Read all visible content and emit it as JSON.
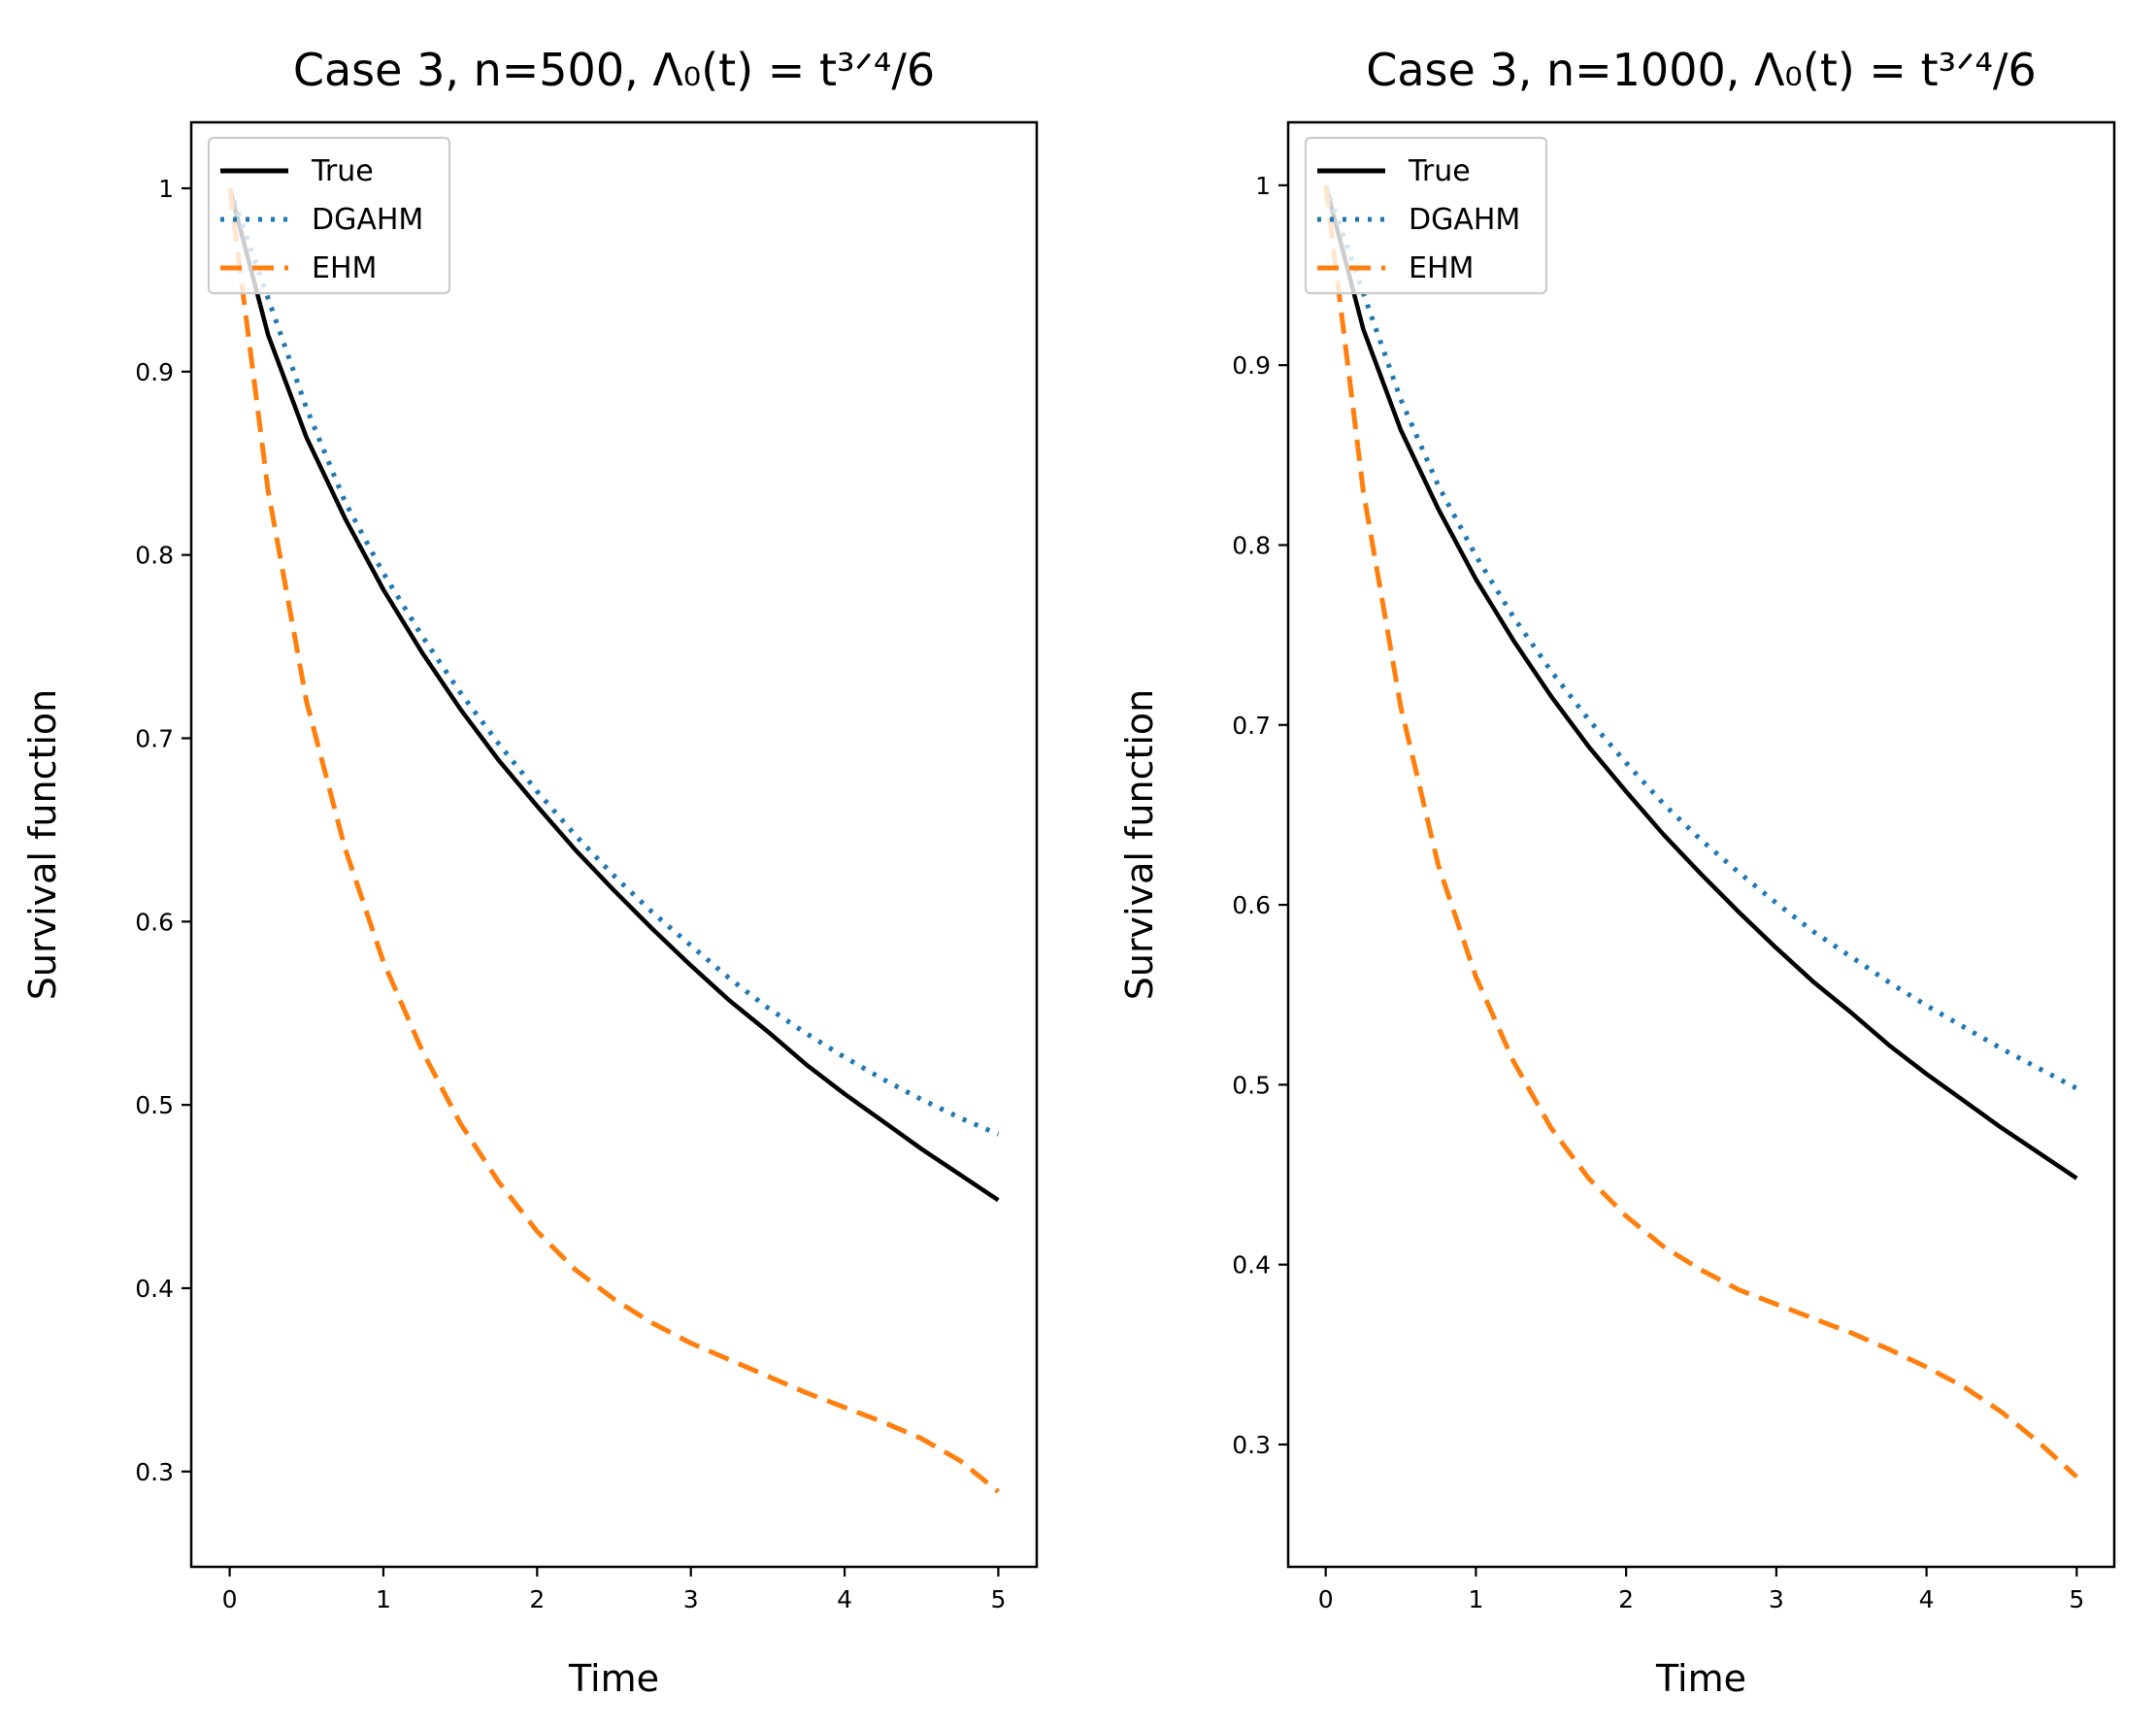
{
  "chart_data": [
    {
      "type": "line",
      "title": "Case 3, n=500, Λ₀(t) = t³ᐟ⁴/6",
      "xlabel": "Time",
      "ylabel": "Survival function",
      "xlim": [
        -0.25,
        5.25
      ],
      "ylim": [
        0.248,
        1.036
      ],
      "xticks": [
        0,
        1,
        2,
        3,
        4,
        5
      ],
      "yticks": [
        0.3,
        0.4,
        0.5,
        0.6,
        0.7,
        0.8,
        0.9,
        1.0
      ],
      "legend": "upper-left",
      "grid": false,
      "x": [
        0,
        0.25,
        0.5,
        0.75,
        1,
        1.25,
        1.5,
        1.75,
        2,
        2.25,
        2.5,
        2.75,
        3,
        3.25,
        3.5,
        3.75,
        4,
        4.25,
        4.5,
        4.75,
        5
      ],
      "series": [
        {
          "name": "True",
          "color": "#000000",
          "dash": "solid",
          "values": [
            1.0,
            0.92,
            0.864,
            0.82,
            0.781,
            0.747,
            0.716,
            0.688,
            0.663,
            0.639,
            0.617,
            0.596,
            0.576,
            0.557,
            0.54,
            0.522,
            0.506,
            0.491,
            0.476,
            0.462,
            0.448
          ]
        },
        {
          "name": "DGAHM",
          "color": "#1f77b4",
          "dash": "dotted",
          "values": [
            1.0,
            0.94,
            0.88,
            0.829,
            0.79,
            0.756,
            0.725,
            0.697,
            0.671,
            0.647,
            0.625,
            0.605,
            0.587,
            0.569,
            0.553,
            0.539,
            0.526,
            0.514,
            0.503,
            0.493,
            0.484
          ]
        },
        {
          "name": "EHM",
          "color": "#ff7f0e",
          "dash": "dashed",
          "values": [
            1.0,
            0.835,
            0.72,
            0.64,
            0.578,
            0.53,
            0.49,
            0.458,
            0.431,
            0.41,
            0.394,
            0.381,
            0.37,
            0.361,
            0.352,
            0.343,
            0.335,
            0.327,
            0.318,
            0.306,
            0.289
          ]
        }
      ]
    },
    {
      "type": "line",
      "title": "Case 3, n=1000, Λ₀(t) = t³ᐟ⁴/6",
      "xlabel": "Time",
      "ylabel": "Survival function",
      "xlim": [
        -0.25,
        5.25
      ],
      "ylim": [
        0.232,
        1.035
      ],
      "xticks": [
        0,
        1,
        2,
        3,
        4,
        5
      ],
      "yticks": [
        0.3,
        0.4,
        0.5,
        0.6,
        0.7,
        0.8,
        0.9,
        1.0
      ],
      "legend": "upper-left",
      "grid": false,
      "x": [
        0,
        0.25,
        0.5,
        0.75,
        1,
        1.25,
        1.5,
        1.75,
        2,
        2.25,
        2.5,
        2.75,
        3,
        3.25,
        3.5,
        3.75,
        4,
        4.25,
        4.5,
        4.75,
        5
      ],
      "series": [
        {
          "name": "True",
          "color": "#000000",
          "dash": "solid",
          "values": [
            1.0,
            0.92,
            0.864,
            0.82,
            0.781,
            0.747,
            0.716,
            0.688,
            0.663,
            0.639,
            0.617,
            0.596,
            0.576,
            0.557,
            0.54,
            0.522,
            0.506,
            0.491,
            0.476,
            0.462,
            0.448
          ]
        },
        {
          "name": "DGAHM",
          "color": "#1f77b4",
          "dash": "dotted",
          "values": [
            1.0,
            0.94,
            0.881,
            0.833,
            0.794,
            0.76,
            0.73,
            0.703,
            0.679,
            0.656,
            0.636,
            0.618,
            0.601,
            0.585,
            0.571,
            0.557,
            0.544,
            0.532,
            0.52,
            0.509,
            0.498
          ]
        },
        {
          "name": "EHM",
          "color": "#ff7f0e",
          "dash": "dashed",
          "values": [
            1.0,
            0.83,
            0.71,
            0.622,
            0.56,
            0.513,
            0.476,
            0.448,
            0.427,
            0.41,
            0.397,
            0.386,
            0.378,
            0.37,
            0.362,
            0.353,
            0.343,
            0.332,
            0.318,
            0.301,
            0.282
          ]
        }
      ]
    }
  ]
}
